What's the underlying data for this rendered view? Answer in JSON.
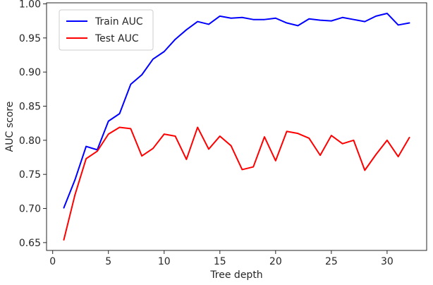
{
  "chart_data": {
    "type": "line",
    "title": "",
    "xlabel": "Tree depth",
    "ylabel": "AUC score",
    "xlim": [
      -0.55,
      33.55
    ],
    "ylim": [
      0.6385,
      1.0015
    ],
    "xticks": [
      0,
      5,
      10,
      15,
      20,
      25,
      30
    ],
    "xtick_labels": [
      "0",
      "5",
      "10",
      "15",
      "20",
      "25",
      "30"
    ],
    "yticks": [
      0.65,
      0.7,
      0.75,
      0.8,
      0.85,
      0.9,
      0.95,
      1.0
    ],
    "ytick_labels": [
      "0.65",
      "0.70",
      "0.75",
      "0.80",
      "0.85",
      "0.90",
      "0.95",
      "1.00"
    ],
    "grid": false,
    "legend_position": "top-left",
    "x": [
      1,
      2,
      3,
      4,
      5,
      6,
      7,
      8,
      9,
      10,
      11,
      12,
      13,
      14,
      15,
      16,
      17,
      18,
      19,
      20,
      21,
      22,
      23,
      24,
      25,
      26,
      27,
      28,
      29,
      30,
      31,
      32
    ],
    "series": [
      {
        "name": "Train AUC",
        "color": "#0000ff",
        "values": [
          0.701,
          0.742,
          0.791,
          0.786,
          0.828,
          0.839,
          0.882,
          0.896,
          0.919,
          0.93,
          0.948,
          0.962,
          0.974,
          0.97,
          0.982,
          0.979,
          0.98,
          0.977,
          0.977,
          0.979,
          0.972,
          0.968,
          0.978,
          0.976,
          0.975,
          0.98,
          0.977,
          0.974,
          0.982,
          0.986,
          0.969,
          0.972
        ]
      },
      {
        "name": "Test AUC",
        "color": "#ff0000",
        "values": [
          0.654,
          0.72,
          0.773,
          0.784,
          0.809,
          0.819,
          0.817,
          0.777,
          0.788,
          0.809,
          0.806,
          0.772,
          0.819,
          0.787,
          0.806,
          0.792,
          0.757,
          0.761,
          0.805,
          0.77,
          0.813,
          0.81,
          0.803,
          0.778,
          0.807,
          0.795,
          0.8,
          0.756,
          0.779,
          0.8,
          0.776,
          0.804
        ]
      }
    ]
  }
}
